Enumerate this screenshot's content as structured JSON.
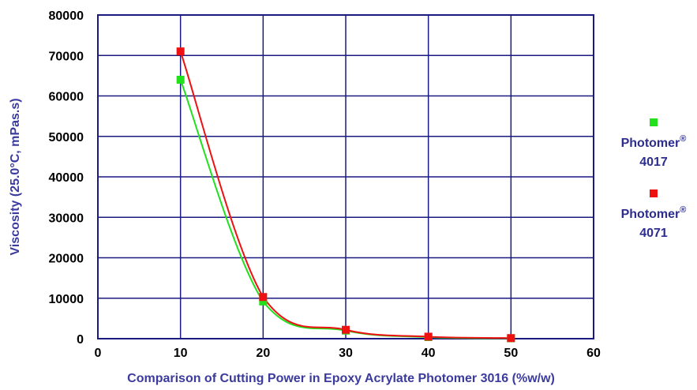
{
  "chart_data": {
    "type": "line",
    "title": "",
    "xlabel": "Comparison of Cutting Power in Epoxy Acrylate Photomer 3016 (%w/w)",
    "ylabel": "Viscosity (25.0°C, mPas.s)",
    "xlim": [
      0,
      60
    ],
    "ylim": [
      0,
      80000
    ],
    "xticks": [
      "0",
      "10",
      "20",
      "30",
      "40",
      "50",
      "60"
    ],
    "yticks": [
      "0",
      "10000",
      "20000",
      "30000",
      "40000",
      "50000",
      "60000",
      "70000",
      "80000"
    ],
    "grid": true,
    "legend_position": "right",
    "series": [
      {
        "name_main": "Photomer",
        "name_sup": "®",
        "name_num": "4017",
        "color": "#22e01c",
        "x": [
          10,
          20,
          30,
          40,
          50
        ],
        "values": [
          64000,
          9200,
          2000,
          400,
          100
        ]
      },
      {
        "name_main": "Photomer",
        "name_sup": "®",
        "name_num": "4071",
        "color": "#ee1111",
        "x": [
          10,
          20,
          30,
          40,
          50
        ],
        "values": [
          71000,
          10300,
          2200,
          500,
          150
        ]
      }
    ]
  },
  "colors": {
    "grid": "#1a1a80",
    "axis_title": "#3b3b9e",
    "legend_text": "#2d2d8f"
  }
}
